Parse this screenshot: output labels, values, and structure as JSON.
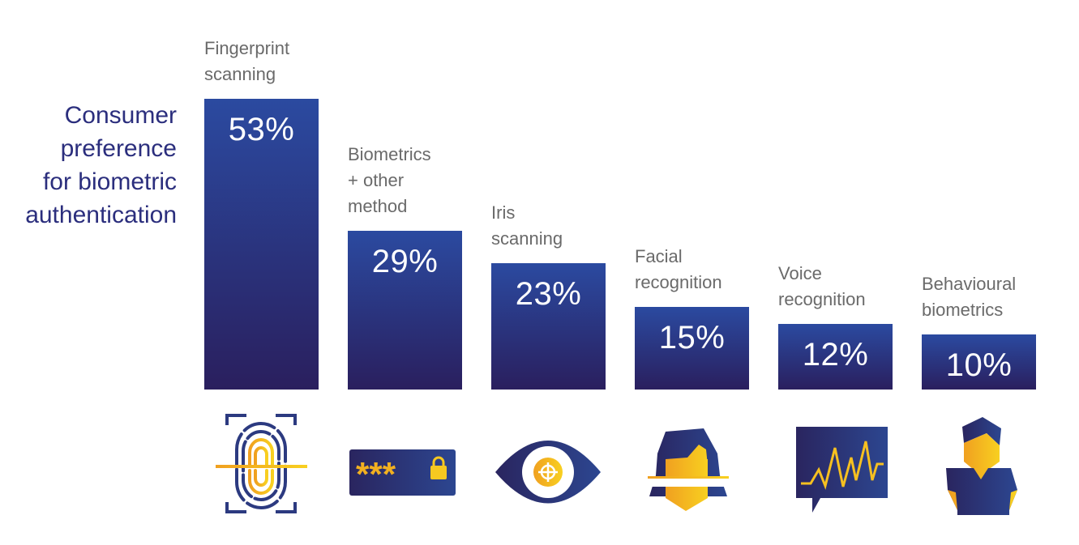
{
  "title": "Consumer\npreference\nfor biometric\nauthentication",
  "colors": {
    "bar_top": "#2b4aa0",
    "bar_bottom": "#2a1f5e",
    "accent": "#f5b820",
    "title": "#2b2e7d"
  },
  "chart_data": {
    "type": "bar",
    "title": "Consumer preference for biometric authentication",
    "categories": [
      "Fingerprint\nscanning",
      "Biometrics\n+ other\nmethod",
      "Iris\nscanning",
      "Facial\nrecognition",
      "Voice\nrecognition",
      "Behavioural\nbiometrics"
    ],
    "values": [
      53,
      29,
      23,
      15,
      12,
      10
    ],
    "value_labels": [
      "53%",
      "29%",
      "23%",
      "15%",
      "12%",
      "10%"
    ],
    "icons": [
      "fingerprint-icon",
      "password-lock-icon",
      "eye-icon",
      "face-scan-icon",
      "voice-wave-icon",
      "person-icon"
    ],
    "xlabel": "",
    "ylabel": "",
    "ylim": [
      0,
      53
    ],
    "grid": false
  }
}
